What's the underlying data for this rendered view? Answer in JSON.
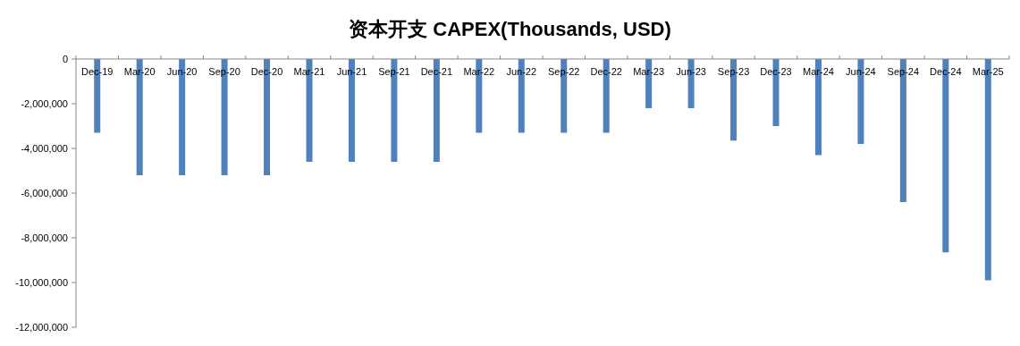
{
  "chart_data": {
    "type": "bar",
    "title": "资本开支 CAPEX(Thousands, USD)",
    "categories": [
      "Dec-19",
      "Mar-20",
      "Jun-20",
      "Sep-20",
      "Dec-20",
      "Mar-21",
      "Jun-21",
      "Sep-21",
      "Dec-21",
      "Mar-22",
      "Jun-22",
      "Sep-22",
      "Dec-22",
      "Mar-23",
      "Jun-23",
      "Sep-23",
      "Dec-23",
      "Mar-24",
      "Jun-24",
      "Sep-24",
      "Dec-24",
      "Mar-25"
    ],
    "values": [
      -3300000,
      -5200000,
      -5200000,
      -5200000,
      -5200000,
      -4600000,
      -4600000,
      -4600000,
      -4600000,
      -3300000,
      -3300000,
      -3300000,
      -3300000,
      -2200000,
      -2200000,
      -3650000,
      -3000000,
      -4300000,
      -3800000,
      -6400000,
      -8650000,
      -9900000
    ],
    "color": "#4f81bd",
    "ylim": [
      -12000000,
      0
    ],
    "yticks": [
      {
        "value": -12000000,
        "label": "-12,000,000"
      },
      {
        "value": -10000000,
        "label": "-10,000,000"
      },
      {
        "value": -8000000,
        "label": "-8,000,000"
      },
      {
        "value": -6000000,
        "label": "-6,000,000"
      },
      {
        "value": -4000000,
        "label": "-4,000,000"
      },
      {
        "value": -2000000,
        "label": "-2,000,000"
      },
      0
    ]
  }
}
